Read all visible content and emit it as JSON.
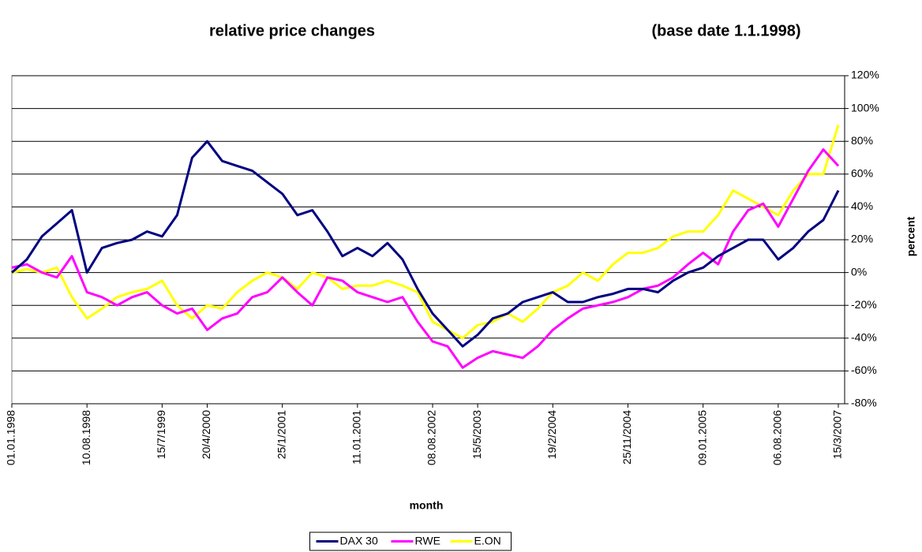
{
  "chart_data": {
    "type": "line",
    "title": "relative price changes",
    "subtitle": "(base date 1.1.1998)",
    "x_label": "month",
    "y_label": "percent",
    "categories": [
      "01.01.1998",
      null,
      null,
      null,
      null,
      "10.08.1998",
      null,
      null,
      null,
      null,
      "15/7/1999",
      null,
      null,
      "20/4/2000",
      null,
      null,
      null,
      null,
      "25/1/2001",
      null,
      null,
      null,
      null,
      "11.01.2001",
      null,
      null,
      null,
      null,
      "08.08.2002",
      null,
      null,
      "15/5/2003",
      null,
      null,
      null,
      null,
      "19/2/2004",
      null,
      null,
      null,
      null,
      "25/11/2004",
      null,
      null,
      null,
      null,
      "09.01.2005",
      null,
      null,
      null,
      null,
      "06.08.2006",
      null,
      null,
      null,
      "15/3/2007"
    ],
    "series": [
      {
        "name": "DAX 30",
        "color": "#000080",
        "values": [
          0,
          8,
          22,
          30,
          38,
          0,
          15,
          18,
          20,
          25,
          22,
          35,
          70,
          80,
          68,
          65,
          62,
          55,
          48,
          35,
          38,
          25,
          10,
          15,
          10,
          18,
          8,
          -10,
          -25,
          -35,
          -45,
          -38,
          -28,
          -25,
          -18,
          -15,
          -12,
          -18,
          -18,
          -15,
          -13,
          -10,
          -10,
          -12,
          -5,
          0,
          3,
          10,
          15,
          20,
          20,
          8,
          15,
          25,
          32,
          50
        ]
      },
      {
        "name": "RWE",
        "color": "#ff00ff",
        "values": [
          3,
          5,
          0,
          -3,
          10,
          -12,
          -15,
          -20,
          -15,
          -12,
          -20,
          -25,
          -22,
          -35,
          -28,
          -25,
          -15,
          -12,
          -3,
          -12,
          -20,
          -3,
          -5,
          -12,
          -15,
          -18,
          -15,
          -30,
          -42,
          -45,
          -58,
          -52,
          -48,
          -50,
          -52,
          -45,
          -35,
          -28,
          -22,
          -20,
          -18,
          -15,
          -10,
          -8,
          -3,
          5,
          12,
          5,
          25,
          38,
          42,
          28,
          45,
          62,
          75,
          65
        ]
      },
      {
        "name": "E.ON",
        "color": "#ffff00",
        "values": [
          0,
          2,
          0,
          3,
          -15,
          -28,
          -22,
          -15,
          -12,
          -10,
          -5,
          -20,
          -28,
          -20,
          -22,
          -12,
          -5,
          0,
          -3,
          -10,
          0,
          -3,
          -10,
          -8,
          -8,
          -5,
          -8,
          -12,
          -30,
          -35,
          -40,
          -32,
          -30,
          -25,
          -30,
          -22,
          -12,
          -8,
          0,
          -5,
          5,
          12,
          12,
          15,
          22,
          25,
          25,
          35,
          50,
          45,
          40,
          35,
          50,
          60,
          60,
          90
        ]
      }
    ],
    "ylim": [
      -80,
      120
    ],
    "yticks": [
      {
        "value": -80,
        "label": "-80%"
      },
      {
        "value": -60,
        "label": "-60%"
      },
      {
        "value": -40,
        "label": "-40%"
      },
      {
        "value": -20,
        "label": "-20%"
      },
      {
        "value": 0,
        "label": "0%"
      },
      {
        "value": 20,
        "label": "20%"
      },
      {
        "value": 40,
        "label": "40%"
      },
      {
        "value": 60,
        "label": "60%"
      },
      {
        "value": 80,
        "label": "80%"
      },
      {
        "value": 100,
        "label": "100%"
      },
      {
        "value": 120,
        "label": "120%"
      }
    ],
    "grid": true
  }
}
